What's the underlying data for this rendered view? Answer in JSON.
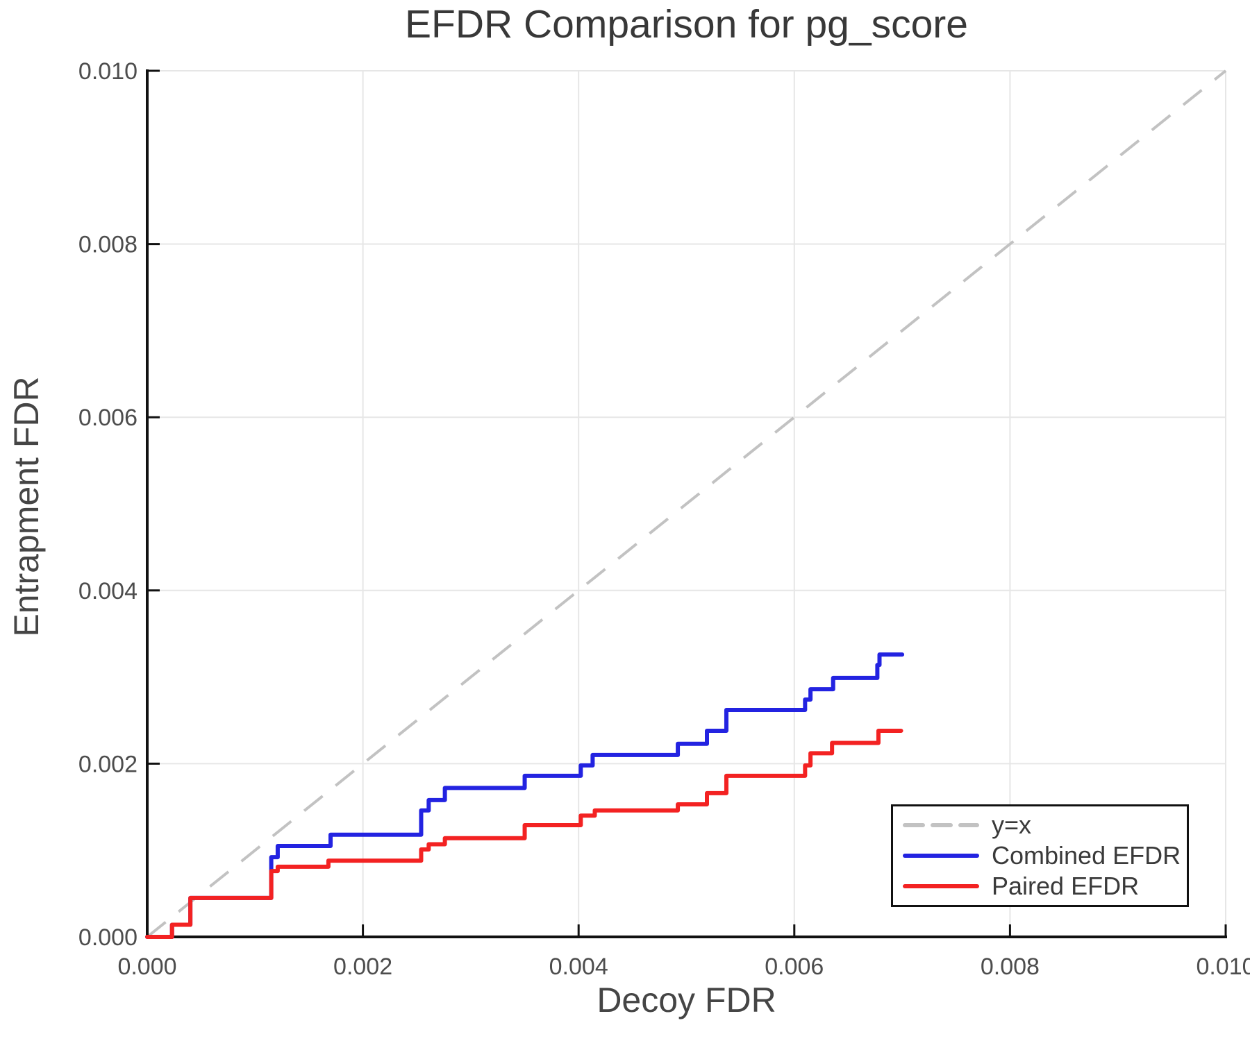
{
  "title": "EFDR Comparison for pg_score",
  "axes": {
    "x_label": "Decoy FDR",
    "y_label": "Entrapment FDR",
    "x_ticks": [
      {
        "value": 0.0,
        "label": "0.000"
      },
      {
        "value": 0.002,
        "label": "0.002"
      },
      {
        "value": 0.004,
        "label": "0.004"
      },
      {
        "value": 0.006,
        "label": "0.006"
      },
      {
        "value": 0.008,
        "label": "0.008"
      },
      {
        "value": 0.01,
        "label": "0.010"
      }
    ],
    "y_ticks": [
      {
        "value": 0.0,
        "label": "0.000"
      },
      {
        "value": 0.002,
        "label": "0.002"
      },
      {
        "value": 0.004,
        "label": "0.004"
      },
      {
        "value": 0.006,
        "label": "0.006"
      },
      {
        "value": 0.008,
        "label": "0.008"
      },
      {
        "value": 0.01,
        "label": "0.010"
      }
    ],
    "x_range": [
      0.0,
      0.01
    ],
    "y_range": [
      0.0,
      0.01
    ]
  },
  "legend": {
    "items": [
      {
        "label": "y=x",
        "color": "#c2c2c2",
        "dashed": true
      },
      {
        "label": "Combined EFDR",
        "color": "#2323e1",
        "dashed": false
      },
      {
        "label": "Paired EFDR",
        "color": "#f32222",
        "dashed": false
      }
    ]
  },
  "colors": {
    "background": "#ffffff",
    "grid": "#e6e6e6",
    "axis": "#111111",
    "title_text": "#383838",
    "tick_text": "#4d4d4d",
    "label_text": "#454545",
    "legend_text": "#3a3a3a",
    "combined": "#2323e1",
    "paired": "#f32222",
    "identity": "#c2c2c2"
  },
  "chart_data": {
    "type": "line",
    "subtype": "step",
    "title": "EFDR Comparison for pg_score",
    "xlabel": "Decoy FDR",
    "ylabel": "Entrapment FDR",
    "xlim": [
      0.0,
      0.01
    ],
    "ylim": [
      0.0,
      0.01
    ],
    "grid": true,
    "legend_position": "lower right",
    "reference_line": {
      "name": "y=x",
      "from": [
        0.0,
        0.0
      ],
      "to": [
        0.01,
        0.01
      ],
      "style": "dashed",
      "color": "#c2c2c2"
    },
    "series": [
      {
        "name": "Combined EFDR",
        "color": "#2323e1",
        "mode": "steps-post",
        "x_end": 0.007,
        "steps": [
          [
            0.0,
            0.0
          ],
          [
            0.00023,
            0.00014
          ],
          [
            0.0004,
            0.00045
          ],
          [
            0.00115,
            0.00092
          ],
          [
            0.00121,
            0.00105
          ],
          [
            0.0017,
            0.00118
          ],
          [
            0.00254,
            0.00146
          ],
          [
            0.00261,
            0.00158
          ],
          [
            0.00276,
            0.00172
          ],
          [
            0.0035,
            0.00186
          ],
          [
            0.00402,
            0.00198
          ],
          [
            0.00413,
            0.0021
          ],
          [
            0.00492,
            0.00223
          ],
          [
            0.00519,
            0.00238
          ],
          [
            0.00537,
            0.00262
          ],
          [
            0.0061,
            0.00274
          ],
          [
            0.00615,
            0.00286
          ],
          [
            0.00636,
            0.00299
          ],
          [
            0.00677,
            0.00314
          ],
          [
            0.00679,
            0.00326
          ]
        ]
      },
      {
        "name": "Paired EFDR",
        "color": "#f32222",
        "mode": "steps-post",
        "x_end": 0.00699,
        "steps": [
          [
            0.0,
            0.0
          ],
          [
            0.00023,
            0.00014
          ],
          [
            0.0004,
            0.00045
          ],
          [
            0.00115,
            0.00076
          ],
          [
            0.00121,
            0.00081
          ],
          [
            0.00168,
            0.00088
          ],
          [
            0.00254,
            0.00101
          ],
          [
            0.00261,
            0.00107
          ],
          [
            0.00276,
            0.00114
          ],
          [
            0.0035,
            0.00129
          ],
          [
            0.00402,
            0.0014
          ],
          [
            0.00415,
            0.00146
          ],
          [
            0.00492,
            0.00153
          ],
          [
            0.00519,
            0.00166
          ],
          [
            0.00537,
            0.00186
          ],
          [
            0.0061,
            0.00198
          ],
          [
            0.00615,
            0.00212
          ],
          [
            0.00635,
            0.00224
          ],
          [
            0.00678,
            0.00238
          ]
        ]
      }
    ]
  }
}
